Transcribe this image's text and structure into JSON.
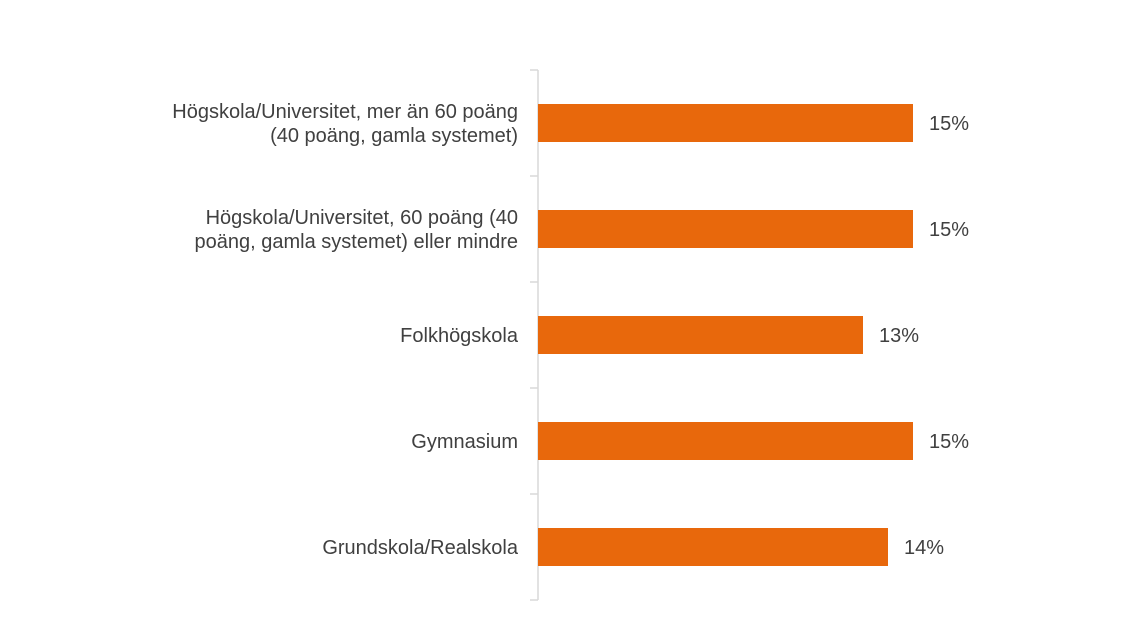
{
  "chart_data": {
    "type": "bar",
    "orientation": "horizontal",
    "categories": [
      [
        "Högskola/Universitet, mer än 60 poäng",
        "(40 poäng, gamla systemet)"
      ],
      [
        "Högskola/Universitet, 60 poäng (40",
        "poäng, gamla systemet) eller mindre"
      ],
      [
        "Folkhögskola"
      ],
      [
        "Gymnasium"
      ],
      [
        "Grundskola/Realskola"
      ]
    ],
    "values": [
      15,
      15,
      13,
      15,
      14
    ],
    "value_labels": [
      "15%",
      "15%",
      "13%",
      "15%",
      "14%"
    ],
    "unit": "%",
    "bar_color": "#e8680c",
    "axis_color": "#d9d9d9",
    "text_color": "#404040",
    "title": "",
    "xlabel": "",
    "ylabel": "",
    "xlim": [
      0,
      100
    ],
    "grid": false,
    "legend": "none"
  }
}
